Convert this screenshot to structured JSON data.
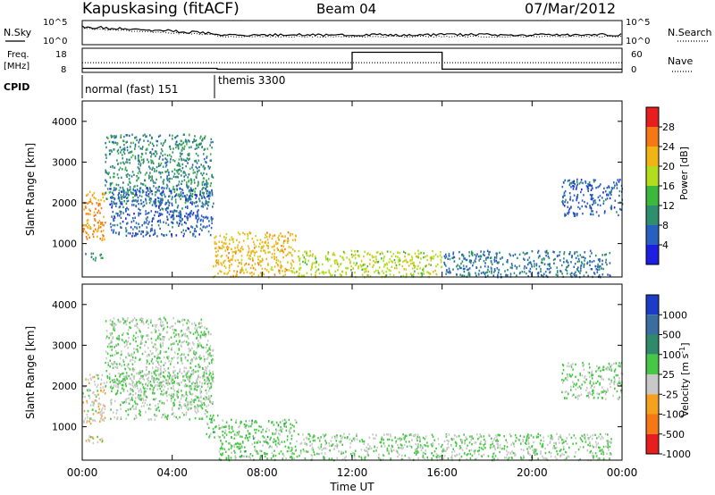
{
  "header": {
    "station": "Kapuskasing (fitACF)",
    "beam": "Beam 04",
    "date": "07/Mar/2012"
  },
  "noise_panel": {
    "left_label": "N.Sky",
    "right_label": "N.Search",
    "left_ticks": [
      "10^5",
      "10^0"
    ],
    "right_ticks": [
      "10^5",
      "10^0"
    ]
  },
  "freq_panel": {
    "left_label_1": "Freq.",
    "left_label_2": "[MHz]",
    "right_label": "Nave",
    "left_ticks": [
      "18",
      "8"
    ],
    "right_ticks": [
      "60",
      "0"
    ],
    "freq_mhz": [
      {
        "start": 0,
        "end": 24,
        "value": 12
      }
    ],
    "nave_segments": [
      {
        "start": 0,
        "end": 6,
        "value": 10
      },
      {
        "start": 6,
        "end": 12,
        "value": 8
      },
      {
        "start": 12,
        "end": 16,
        "value": 50
      },
      {
        "start": 16,
        "end": 24,
        "value": 8
      }
    ]
  },
  "cpid_panel": {
    "label": "CPID",
    "modes": [
      {
        "name": "normal (fast) 151",
        "start": 0
      },
      {
        "name": "themis 3300",
        "start": 6
      }
    ]
  },
  "axes": {
    "xlabel": "Time UT",
    "xticks": [
      "00:00",
      "04:00",
      "08:00",
      "12:00",
      "16:00",
      "20:00",
      "00:00"
    ],
    "ylabel": "Slant Range [km]",
    "yticks": [
      "1000",
      "2000",
      "3000",
      "4000"
    ]
  },
  "power_colorbar": {
    "label": "Power [dB]",
    "ticks": [
      "4",
      "8",
      "12",
      "16",
      "20",
      "24",
      "28"
    ],
    "colors": [
      "#1e1ee0",
      "#2860c0",
      "#2e8e6e",
      "#3cb83c",
      "#b4dc1e",
      "#f0b414",
      "#f57814",
      "#e61e1e"
    ]
  },
  "velocity_colorbar": {
    "label": "Velocity [m s^-1]",
    "ticks": [
      "1000",
      "500",
      "100",
      "25",
      "-25",
      "-100",
      "-500",
      "-1000"
    ],
    "colors": [
      "#1a3cc8",
      "#3a6ea0",
      "#2e8a6a",
      "#46c846",
      "#c8c8c8",
      "#f5a01e",
      "#f57814",
      "#e61e1e"
    ]
  },
  "chart_data": [
    {
      "type": "heatmap",
      "title": "Power [dB]",
      "xlabel": "Time UT",
      "ylabel": "Slant Range [km]",
      "xlim": [
        0,
        24
      ],
      "ylim": [
        180,
        4500
      ],
      "clim": [
        0,
        32
      ],
      "regions": [
        {
          "t": [
            0.0,
            1.0
          ],
          "r": [
            1100,
            2300
          ],
          "v": 24
        },
        {
          "t": [
            0.0,
            1.0
          ],
          "r": [
            600,
            800
          ],
          "v": 10
        },
        {
          "t": [
            1.0,
            5.8
          ],
          "r": [
            2000,
            3700
          ],
          "v": 10
        },
        {
          "t": [
            1.2,
            5.8
          ],
          "r": [
            1200,
            2400
          ],
          "v": 6
        },
        {
          "t": [
            5.8,
            9.5
          ],
          "r": [
            200,
            1300
          ],
          "v": 22
        },
        {
          "t": [
            9.5,
            16.0
          ],
          "r": [
            200,
            850
          ],
          "v": 18
        },
        {
          "t": [
            16.0,
            23.5
          ],
          "r": [
            200,
            850
          ],
          "v": 8
        },
        {
          "t": [
            21.3,
            24.0
          ],
          "r": [
            1700,
            2600
          ],
          "v": 6
        }
      ]
    },
    {
      "type": "heatmap",
      "title": "Velocity [m s^-1]",
      "xlabel": "Time UT",
      "ylabel": "Slant Range [km]",
      "xlim": [
        0,
        24
      ],
      "ylim": [
        180,
        4500
      ],
      "clim": [
        -1000,
        1000
      ],
      "regions": [
        {
          "t": [
            0.0,
            1.0
          ],
          "r": [
            1100,
            2300
          ],
          "v": -150
        },
        {
          "t": [
            0.0,
            1.0
          ],
          "r": [
            600,
            800
          ],
          "v": -150
        },
        {
          "t": [
            1.0,
            5.8
          ],
          "r": [
            2000,
            3700
          ],
          "v": 0
        },
        {
          "t": [
            1.2,
            5.8
          ],
          "r": [
            1200,
            2400
          ],
          "v": 0
        },
        {
          "t": [
            5.5,
            6.0
          ],
          "r": [
            700,
            1400
          ],
          "v": 150
        },
        {
          "t": [
            6.0,
            9.5
          ],
          "r": [
            200,
            1200
          ],
          "v": 80
        },
        {
          "t": [
            9.5,
            16.0
          ],
          "r": [
            200,
            850
          ],
          "v": 20
        },
        {
          "t": [
            16.0,
            23.5
          ],
          "r": [
            200,
            850
          ],
          "v": 0
        },
        {
          "t": [
            21.3,
            24.0
          ],
          "r": [
            1700,
            2600
          ],
          "v": 0
        }
      ]
    }
  ]
}
